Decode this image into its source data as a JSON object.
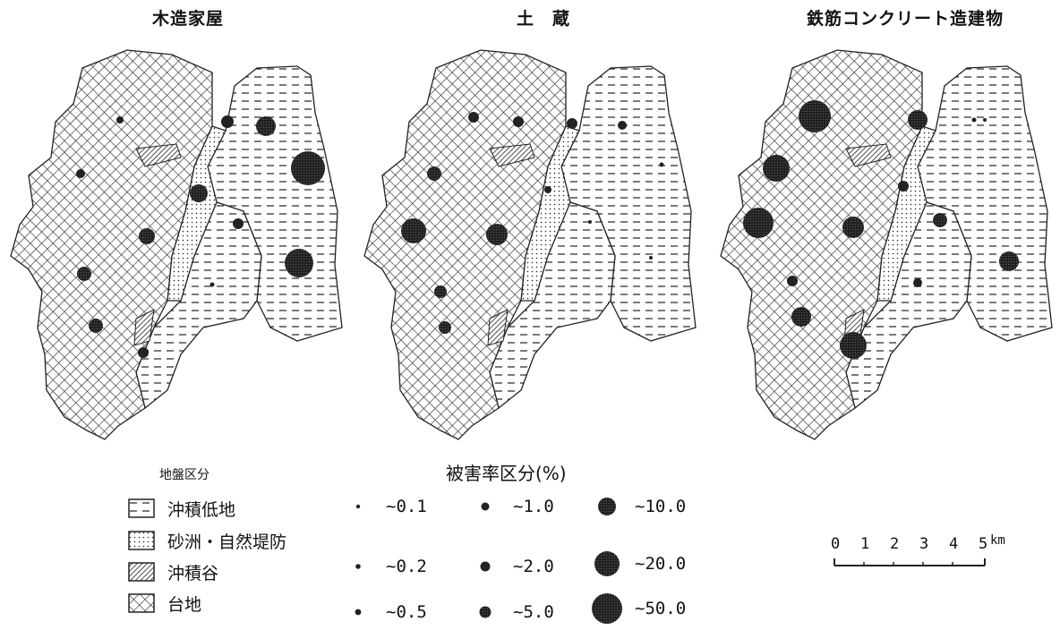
{
  "map_titles": [
    "木造家屋",
    "土　蔵",
    "鉄筋コンクリート造建物"
  ],
  "ground_legend": {
    "heading": "地盤区分",
    "items": [
      {
        "label": "沖積低地",
        "pattern": "dash"
      },
      {
        "label": "砂洲・自然堤防",
        "pattern": "dots"
      },
      {
        "label": "沖積谷",
        "pattern": "hatch"
      },
      {
        "label": "台地",
        "pattern": "cross"
      }
    ]
  },
  "damage_legend": {
    "heading": "被害率区分(%)",
    "items": [
      {
        "label": "~0.1",
        "level": 1
      },
      {
        "label": "~0.2",
        "level": 2
      },
      {
        "label": "~0.5",
        "level": 3
      },
      {
        "label": "~1.0",
        "level": 4
      },
      {
        "label": "~2.0",
        "level": 5
      },
      {
        "label": "~5.0",
        "level": 6
      },
      {
        "label": "~10.0",
        "level": 7
      },
      {
        "label": "~20.0",
        "level": 8
      },
      {
        "label": "~50.0",
        "level": 9
      }
    ]
  },
  "scale_bar": {
    "ticks": [
      "0",
      "1",
      "2",
      "3",
      "4",
      "5"
    ],
    "unit": "km"
  },
  "colors": {
    "ink": "#1a1a1a",
    "paper": "#ffffff"
  }
}
